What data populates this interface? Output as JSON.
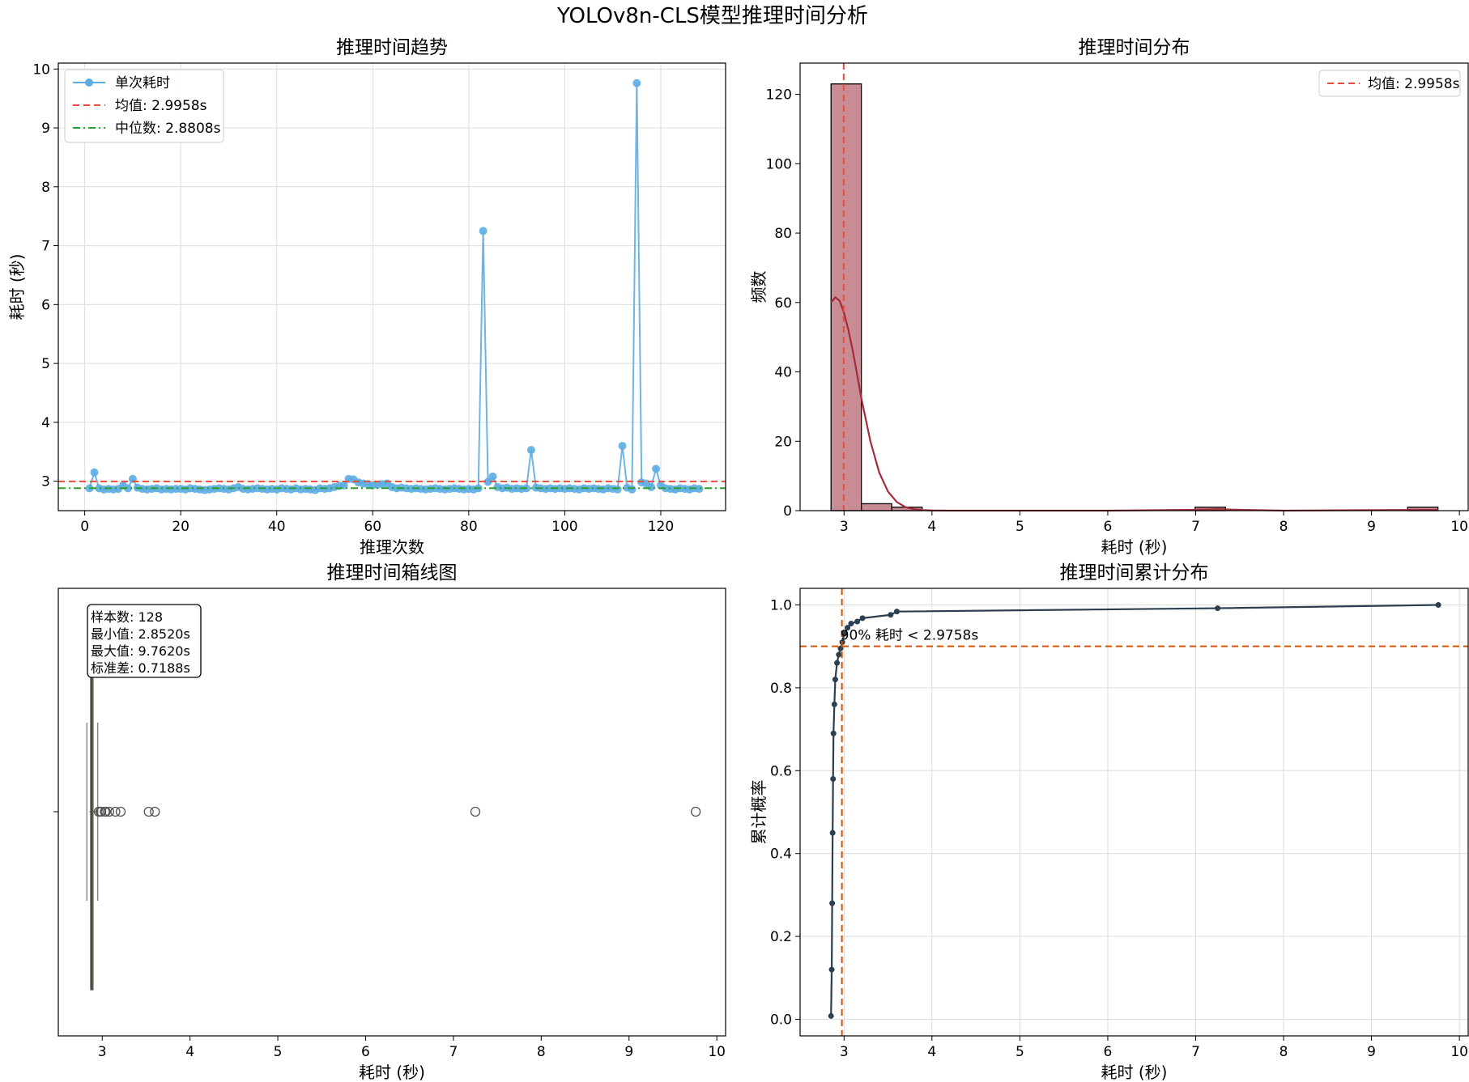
{
  "figure_title": "YOLOv8n-CLS模型推理时间分析",
  "colors": {
    "trend": "#5dade2",
    "mean": "#e74c3c",
    "median": "#2ca02c",
    "hist_fill": "#c98b94",
    "kde": "#a52a3a",
    "box": "#8a8a5a",
    "cdf": "#2c3e50",
    "p90": "#d35400"
  },
  "chart_data": [
    {
      "type": "line",
      "title": "推理时间趋势",
      "xlabel": "推理次数",
      "ylabel": "耗时 (秒)",
      "xlim": [
        -5.5,
        133.5
      ],
      "ylim": [
        2.5,
        10.1
      ],
      "xticks": [
        "0",
        "20",
        "40",
        "60",
        "80",
        "100",
        "120"
      ],
      "yticks": [
        "3",
        "4",
        "5",
        "6",
        "7",
        "8",
        "9",
        "10"
      ],
      "grid": true,
      "legend_position": "upper left",
      "series": [
        {
          "name": "单次耗时",
          "x": [
            1,
            2,
            3,
            4,
            5,
            6,
            7,
            8,
            9,
            10,
            11,
            12,
            13,
            14,
            15,
            16,
            17,
            18,
            19,
            20,
            21,
            22,
            23,
            24,
            25,
            26,
            27,
            28,
            29,
            30,
            31,
            32,
            33,
            34,
            35,
            36,
            37,
            38,
            39,
            40,
            41,
            42,
            43,
            44,
            45,
            46,
            47,
            48,
            49,
            50,
            51,
            52,
            53,
            54,
            55,
            56,
            57,
            58,
            59,
            60,
            61,
            62,
            63,
            64,
            65,
            66,
            67,
            68,
            69,
            70,
            71,
            72,
            73,
            74,
            75,
            76,
            77,
            78,
            79,
            80,
            81,
            82,
            83,
            84,
            85,
            86,
            87,
            88,
            89,
            90,
            91,
            92,
            93,
            94,
            95,
            96,
            97,
            98,
            99,
            100,
            101,
            102,
            103,
            104,
            105,
            106,
            107,
            108,
            109,
            110,
            111,
            112,
            113,
            114,
            115,
            116,
            117,
            118,
            119,
            120,
            121,
            122,
            123,
            124,
            125,
            126,
            127,
            128
          ],
          "values": [
            2.88,
            3.15,
            2.88,
            2.86,
            2.87,
            2.86,
            2.87,
            2.93,
            2.88,
            3.04,
            2.89,
            2.87,
            2.86,
            2.87,
            2.88,
            2.86,
            2.87,
            2.86,
            2.87,
            2.87,
            2.86,
            2.88,
            2.87,
            2.86,
            2.85,
            2.86,
            2.87,
            2.88,
            2.87,
            2.86,
            2.88,
            2.9,
            2.87,
            2.86,
            2.87,
            2.88,
            2.87,
            2.86,
            2.87,
            2.86,
            2.88,
            2.87,
            2.86,
            2.88,
            2.86,
            2.87,
            2.86,
            2.85,
            2.88,
            2.87,
            2.88,
            2.9,
            2.92,
            2.93,
            3.04,
            3.03,
            2.98,
            2.96,
            2.95,
            2.93,
            2.94,
            2.95,
            2.96,
            2.9,
            2.88,
            2.89,
            2.88,
            2.87,
            2.88,
            2.87,
            2.86,
            2.87,
            2.88,
            2.87,
            2.86,
            2.87,
            2.88,
            2.87,
            2.86,
            2.87,
            2.86,
            2.88,
            7.25,
            2.99,
            3.08,
            2.9,
            2.88,
            2.89,
            2.87,
            2.88,
            2.87,
            2.88,
            3.53,
            2.89,
            2.88,
            2.87,
            2.88,
            2.87,
            2.88,
            2.87,
            2.88,
            2.87,
            2.86,
            2.88,
            2.87,
            2.88,
            2.87,
            2.86,
            2.88,
            2.87,
            2.86,
            3.6,
            2.89,
            2.86,
            9.76,
            2.98,
            2.96,
            2.9,
            3.21,
            2.93,
            2.88,
            2.87,
            2.86,
            2.88,
            2.87,
            2.86,
            2.88,
            2.87
          ]
        },
        {
          "name": "均值: 2.9958s",
          "value": 2.9958,
          "style": "dashed"
        },
        {
          "name": "中位数: 2.8808s",
          "value": 2.8808,
          "style": "dashdot"
        }
      ]
    },
    {
      "type": "bar",
      "title": "推理时间分布",
      "xlabel": "耗时 (秒)",
      "ylabel": "频数",
      "xlim": [
        2.5,
        10.1
      ],
      "ylim": [
        0,
        129
      ],
      "xticks": [
        "3",
        "4",
        "5",
        "6",
        "7",
        "8",
        "9",
        "10"
      ],
      "yticks": [
        "0",
        "20",
        "40",
        "60",
        "80",
        "100",
        "120"
      ],
      "grid": false,
      "legend_position": "upper right",
      "bin_edges": [
        2.852,
        3.197,
        3.542,
        3.888,
        4.233,
        4.578,
        4.923,
        5.268,
        5.614,
        5.959,
        6.304,
        6.649,
        6.994,
        7.339,
        7.685,
        8.03,
        8.375,
        8.72,
        9.065,
        9.411,
        9.756
      ],
      "counts": [
        123,
        2,
        1,
        0,
        0,
        0,
        0,
        0,
        0,
        0,
        0,
        0,
        1,
        0,
        0,
        0,
        0,
        0,
        0,
        1
      ],
      "kde_x": [
        2.85,
        2.9,
        2.95,
        3.0,
        3.05,
        3.1,
        3.15,
        3.2,
        3.3,
        3.4,
        3.5,
        3.6,
        3.7,
        3.8,
        3.9,
        4.0,
        4.2,
        4.5,
        5.0,
        6.0,
        7.0,
        7.25,
        7.5,
        8.0,
        9.0,
        9.76
      ],
      "kde_y": [
        60,
        61.5,
        60.5,
        57,
        52,
        46,
        39,
        32,
        20,
        11,
        5.5,
        2.5,
        1.0,
        0.4,
        0.15,
        0.05,
        0.02,
        0.01,
        0.01,
        0.01,
        0.25,
        0.4,
        0.25,
        0.02,
        0.15,
        0.2
      ],
      "series": [
        {
          "name": "均值: 2.9958s",
          "value": 2.9958,
          "style": "dashed"
        }
      ]
    },
    {
      "type": "box",
      "title": "推理时间箱线图",
      "xlabel": "耗时 (秒)",
      "xlim": [
        2.5,
        10.1
      ],
      "xticks": [
        "3",
        "4",
        "5",
        "6",
        "7",
        "8",
        "9",
        "10"
      ],
      "q1": 2.868,
      "median": 2.8808,
      "q3": 2.893,
      "whisker_low": 2.852,
      "whisker_high": 2.95,
      "outliers": [
        2.96,
        2.98,
        2.99,
        3.03,
        3.04,
        3.08,
        3.15,
        3.21,
        3.53,
        3.6,
        7.25,
        9.76
      ],
      "stats_lines": [
        "样本数: 128",
        "最小值: 2.8520s",
        "最大值: 9.7620s",
        "标准差: 0.7188s"
      ]
    },
    {
      "type": "line",
      "title": "推理时间累计分布",
      "xlabel": "耗时 (秒)",
      "ylabel": "累计概率",
      "xlim": [
        2.5,
        10.1
      ],
      "ylim": [
        -0.04,
        1.04
      ],
      "xticks": [
        "3",
        "4",
        "5",
        "6",
        "7",
        "8",
        "9",
        "10"
      ],
      "yticks": [
        "0.0",
        "0.2",
        "0.4",
        "0.6",
        "0.8",
        "1.0"
      ],
      "grid": true,
      "x": [
        2.852,
        2.86,
        2.865,
        2.87,
        2.875,
        2.88,
        2.89,
        2.9,
        2.92,
        2.94,
        2.96,
        2.98,
        3.0,
        3.04,
        3.08,
        3.15,
        3.21,
        3.53,
        3.6,
        7.25,
        9.76
      ],
      "values": [
        0.008,
        0.12,
        0.28,
        0.45,
        0.58,
        0.69,
        0.76,
        0.82,
        0.86,
        0.88,
        0.895,
        0.91,
        0.93,
        0.945,
        0.955,
        0.96,
        0.968,
        0.976,
        0.984,
        0.992,
        1.0
      ],
      "p90_value": 0.9,
      "p90_x": 2.9758,
      "annotation": "90% 耗时 < 2.9758s"
    }
  ]
}
